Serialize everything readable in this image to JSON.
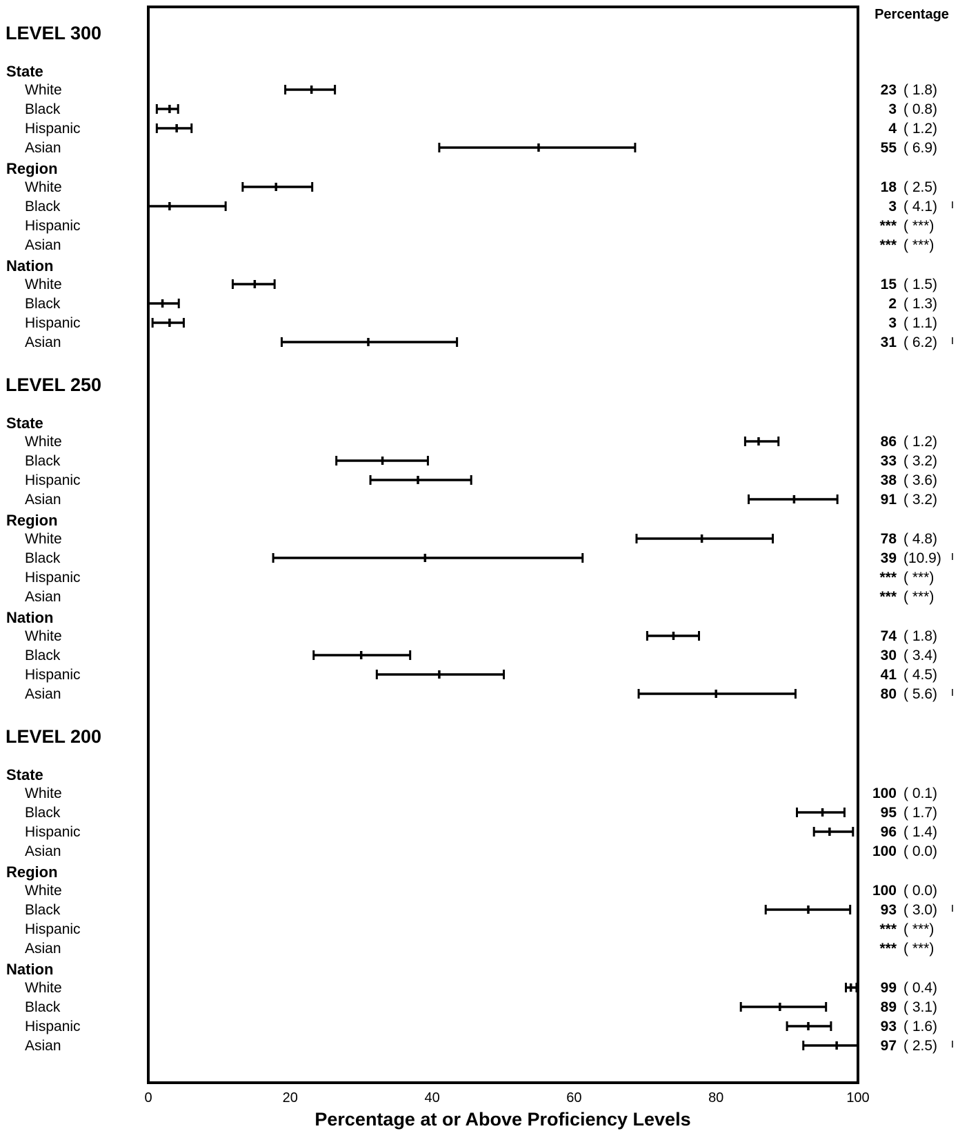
{
  "chart_data": {
    "type": "interval",
    "xlabel": "Percentage at or Above Proficiency Levels",
    "value_column_header": "Percentage",
    "xlim": [
      0,
      100
    ],
    "x_ticks": [
      "0",
      "20",
      "40",
      "60",
      "80",
      "100"
    ],
    "levels": [
      {
        "label": "LEVEL 300",
        "groups": [
          {
            "label": "State",
            "rows": [
              {
                "label": "White",
                "value": 23,
                "text": "23",
                "se": "( 1.8)",
                "low": 19.3,
                "high": 26.3,
                "flag": false
              },
              {
                "label": "Black",
                "value": 3,
                "text": "3",
                "se": "( 0.8)",
                "low": 1.2,
                "high": 4.2,
                "flag": false
              },
              {
                "label": "Hispanic",
                "value": 4,
                "text": "4",
                "se": "( 1.2)",
                "low": 1.2,
                "high": 6.1,
                "flag": false
              },
              {
                "label": "Asian",
                "value": 55,
                "text": "55",
                "se": "( 6.9)",
                "low": 41.0,
                "high": 68.6,
                "flag": false
              }
            ]
          },
          {
            "label": "Region",
            "rows": [
              {
                "label": "White",
                "value": 18,
                "text": "18",
                "se": "( 2.5)",
                "low": 13.3,
                "high": 23.1,
                "flag": false
              },
              {
                "label": "Black",
                "value": 3,
                "text": "3",
                "se": "( 4.1)",
                "low": 0.0,
                "high": 10.9,
                "flag": true
              },
              {
                "label": "Hispanic",
                "value": null,
                "text": "***",
                "se": "( ***)",
                "low": null,
                "high": null,
                "flag": false
              },
              {
                "label": "Asian",
                "value": null,
                "text": "***",
                "se": "( ***)",
                "low": null,
                "high": null,
                "flag": false
              }
            ]
          },
          {
            "label": "Nation",
            "rows": [
              {
                "label": "White",
                "value": 15,
                "text": "15",
                "se": "( 1.5)",
                "low": 11.9,
                "high": 17.8,
                "flag": false
              },
              {
                "label": "Black",
                "value": 2,
                "text": "2",
                "se": "( 1.3)",
                "low": 0.0,
                "high": 4.3,
                "flag": false
              },
              {
                "label": "Hispanic",
                "value": 3,
                "text": "3",
                "se": "( 1.1)",
                "low": 0.6,
                "high": 5.0,
                "flag": false
              },
              {
                "label": "Asian",
                "value": 31,
                "text": "31",
                "se": "( 6.2)",
                "low": 18.8,
                "high": 43.5,
                "flag": true
              }
            ]
          }
        ]
      },
      {
        "label": "LEVEL 250",
        "groups": [
          {
            "label": "State",
            "rows": [
              {
                "label": "White",
                "value": 86,
                "text": "86",
                "se": "( 1.2)",
                "low": 84.1,
                "high": 88.8,
                "flag": false
              },
              {
                "label": "Black",
                "value": 33,
                "text": "33",
                "se": "( 3.2)",
                "low": 26.5,
                "high": 39.4,
                "flag": false
              },
              {
                "label": "Hispanic",
                "value": 38,
                "text": "38",
                "se": "( 3.6)",
                "low": 31.3,
                "high": 45.5,
                "flag": false
              },
              {
                "label": "Asian",
                "value": 91,
                "text": "91",
                "se": "( 3.2)",
                "low": 84.6,
                "high": 97.1,
                "flag": false
              }
            ]
          },
          {
            "label": "Region",
            "rows": [
              {
                "label": "White",
                "value": 78,
                "text": "78",
                "se": "( 4.8)",
                "low": 68.8,
                "high": 88.0,
                "flag": false
              },
              {
                "label": "Black",
                "value": 39,
                "text": "39",
                "se": "(10.9)",
                "low": 17.6,
                "high": 61.2,
                "flag": true
              },
              {
                "label": "Hispanic",
                "value": null,
                "text": "***",
                "se": "( ***)",
                "low": null,
                "high": null,
                "flag": false
              },
              {
                "label": "Asian",
                "value": null,
                "text": "***",
                "se": "( ***)",
                "low": null,
                "high": null,
                "flag": false
              }
            ]
          },
          {
            "label": "Nation",
            "rows": [
              {
                "label": "White",
                "value": 74,
                "text": "74",
                "se": "( 1.8)",
                "low": 70.3,
                "high": 77.6,
                "flag": false
              },
              {
                "label": "Black",
                "value": 30,
                "text": "30",
                "se": "( 3.4)",
                "low": 23.3,
                "high": 36.9,
                "flag": false
              },
              {
                "label": "Hispanic",
                "value": 41,
                "text": "41",
                "se": "( 4.5)",
                "low": 32.2,
                "high": 50.1,
                "flag": false
              },
              {
                "label": "Asian",
                "value": 80,
                "text": "80",
                "se": "( 5.6)",
                "low": 69.1,
                "high": 91.2,
                "flag": true
              }
            ]
          }
        ]
      },
      {
        "label": "LEVEL 200",
        "groups": [
          {
            "label": "State",
            "rows": [
              {
                "label": "White",
                "value": 100,
                "text": "100",
                "se": "( 0.1)",
                "low": null,
                "high": null,
                "flag": false
              },
              {
                "label": "Black",
                "value": 95,
                "text": "95",
                "se": "( 1.7)",
                "low": 91.4,
                "high": 98.1,
                "flag": false
              },
              {
                "label": "Hispanic",
                "value": 96,
                "text": "96",
                "se": "( 1.4)",
                "low": 93.8,
                "high": 99.3,
                "flag": false
              },
              {
                "label": "Asian",
                "value": 100,
                "text": "100",
                "se": "( 0.0)",
                "low": null,
                "high": null,
                "flag": false
              }
            ]
          },
          {
            "label": "Region",
            "rows": [
              {
                "label": "White",
                "value": 100,
                "text": "100",
                "se": "( 0.0)",
                "low": null,
                "high": null,
                "flag": false
              },
              {
                "label": "Black",
                "value": 93,
                "text": "93",
                "se": "( 3.0)",
                "low": 87.0,
                "high": 98.9,
                "flag": true
              },
              {
                "label": "Hispanic",
                "value": null,
                "text": "***",
                "se": "( ***)",
                "low": null,
                "high": null,
                "flag": false
              },
              {
                "label": "Asian",
                "value": null,
                "text": "***",
                "se": "( ***)",
                "low": null,
                "high": null,
                "flag": false
              }
            ]
          },
          {
            "label": "Nation",
            "rows": [
              {
                "label": "White",
                "value": 99,
                "text": "99",
                "se": "( 0.4)",
                "low": 98.3,
                "high": 99.8,
                "flag": false
              },
              {
                "label": "Black",
                "value": 89,
                "text": "89",
                "se": "( 3.1)",
                "low": 83.5,
                "high": 95.5,
                "flag": false
              },
              {
                "label": "Hispanic",
                "value": 93,
                "text": "93",
                "se": "( 1.6)",
                "low": 90.0,
                "high": 96.2,
                "flag": false
              },
              {
                "label": "Asian",
                "value": 97,
                "text": "97",
                "se": "( 2.5)",
                "low": 92.3,
                "high": 100.0,
                "flag": true
              }
            ]
          }
        ]
      }
    ]
  }
}
